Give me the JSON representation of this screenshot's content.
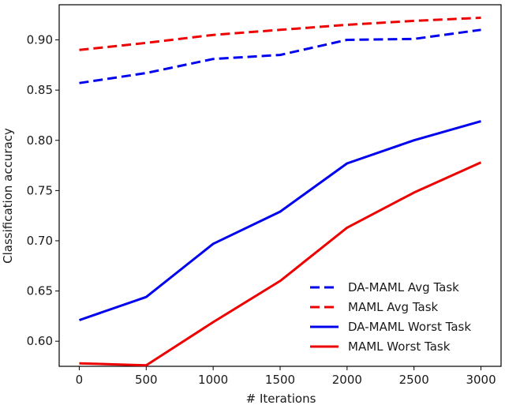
{
  "chart_data": {
    "type": "line",
    "title": "",
    "xlabel": "# Iterations",
    "ylabel": "Classification accuracy",
    "xlim": [
      -150,
      3150
    ],
    "ylim": [
      0.575,
      0.935
    ],
    "xticks": [
      0,
      500,
      1000,
      1500,
      2000,
      2500,
      3000
    ],
    "xtick_labels": [
      "0",
      "500",
      "1000",
      "1500",
      "2000",
      "2500",
      "3000"
    ],
    "yticks": [
      0.6,
      0.65,
      0.7,
      0.75,
      0.8,
      0.85,
      0.9
    ],
    "ytick_labels": [
      "0.60",
      "0.65",
      "0.70",
      "0.75",
      "0.80",
      "0.85",
      "0.90"
    ],
    "grid": false,
    "legend_position": "bottom-right",
    "x": [
      0,
      500,
      1000,
      1500,
      2000,
      2500,
      3000
    ],
    "series": [
      {
        "name": "DA-MAML Avg Task",
        "color": "#0000ee",
        "dash": "dashed",
        "values": [
          0.857,
          0.867,
          0.881,
          0.885,
          0.9,
          0.901,
          0.91
        ]
      },
      {
        "name": "MAML Avg Task",
        "color": "#ee0000",
        "dash": "dashed",
        "values": [
          0.89,
          0.897,
          0.905,
          0.91,
          0.915,
          0.919,
          0.922
        ]
      },
      {
        "name": "DA-MAML Worst Task",
        "color": "#0000ee",
        "dash": "solid",
        "values": [
          0.621,
          0.644,
          0.697,
          0.729,
          0.777,
          0.8,
          0.819
        ]
      },
      {
        "name": "MAML Worst Task",
        "color": "#ee0000",
        "dash": "solid",
        "values": [
          0.578,
          0.576,
          0.619,
          0.66,
          0.713,
          0.748,
          0.778
        ]
      }
    ]
  }
}
